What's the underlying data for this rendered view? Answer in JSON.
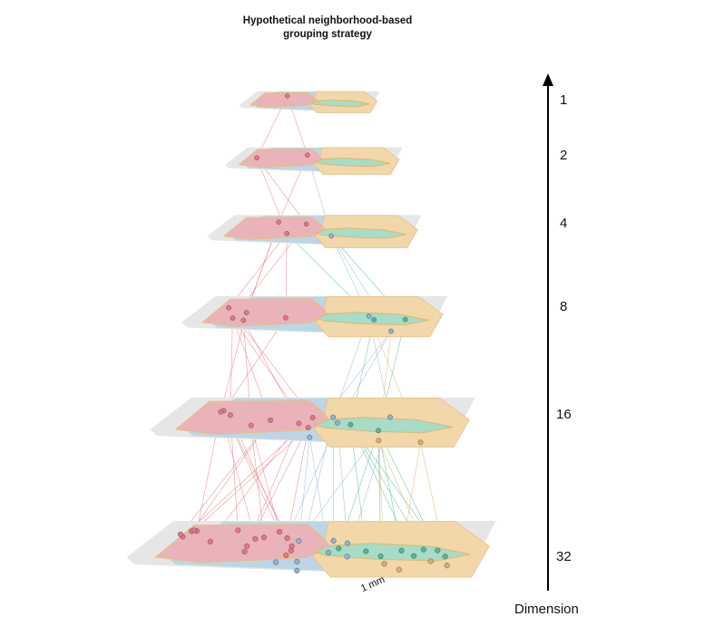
{
  "title_line1": "Hypothetical neighborhood-based",
  "title_line2": "grouping strategy",
  "axis": {
    "title": "Dimension",
    "direction": "up",
    "ticks": [
      "1",
      "2",
      "4",
      "8",
      "16",
      "32"
    ]
  },
  "scale_bar": {
    "label": "1 mm"
  },
  "layers": [
    {
      "dimension": "1",
      "red_points": 1,
      "blue_points": 0,
      "green_points": 0,
      "orange_points": 0
    },
    {
      "dimension": "2",
      "red_points": 2,
      "blue_points": 0,
      "green_points": 0,
      "orange_points": 0
    },
    {
      "dimension": "4",
      "red_points": 3,
      "blue_points": 1,
      "green_points": 0,
      "orange_points": 0
    },
    {
      "dimension": "8",
      "red_points": 5,
      "blue_points": 2,
      "green_points": 2,
      "orange_points": 0
    },
    {
      "dimension": "16",
      "red_points": 8,
      "blue_points": 4,
      "green_points": 2,
      "orange_points": 2
    },
    {
      "dimension": "32",
      "red_points": 16,
      "blue_points": 8,
      "green_points": 8,
      "orange_points": 4
    }
  ],
  "colors": {
    "red_region": "#eab3b9",
    "blue_region": "#bcd6e6",
    "green_region": "#a6dcc8",
    "orange_region": "#f2d7ab",
    "plane_gray": "#e6e6e6",
    "red_point": "#e6757f",
    "blue_point": "#8eb4d5",
    "green_point": "#4dbb93",
    "orange_point": "#e3ae5e",
    "axis": "#000000"
  }
}
